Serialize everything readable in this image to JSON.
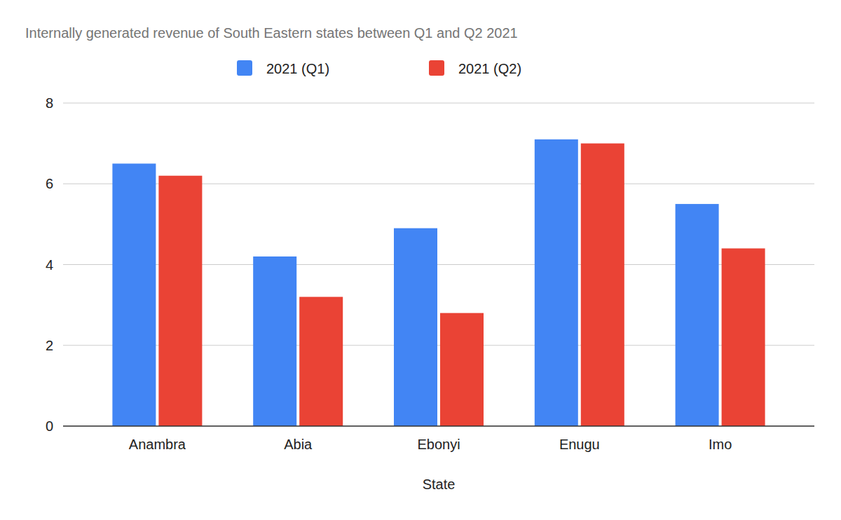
{
  "chart_data": {
    "type": "bar",
    "title": "Internally generated revenue of South Eastern states between Q1 and Q2 2021",
    "x_label": "State",
    "categories": [
      "Anambra",
      "Abia",
      "Ebonyi",
      "Enugu",
      "Imo"
    ],
    "series": [
      {
        "name": "2021 (Q1)",
        "color": "#4285f4",
        "values": [
          6.5,
          4.2,
          4.9,
          7.1,
          5.5
        ]
      },
      {
        "name": "2021 (Q2)",
        "color": "#ea4335",
        "values": [
          6.2,
          3.2,
          2.8,
          7.0,
          4.4
        ]
      }
    ],
    "ylim": [
      0,
      8
    ],
    "yticks": [
      0,
      2,
      4,
      6,
      8
    ],
    "grid": true,
    "legend": "top"
  }
}
